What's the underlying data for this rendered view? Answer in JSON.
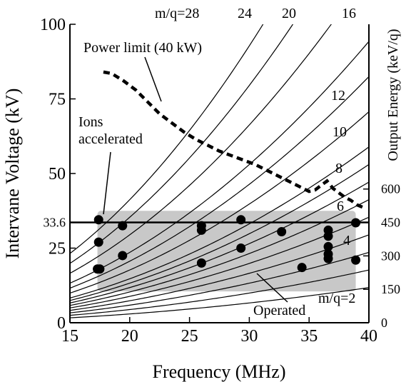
{
  "chart_data": {
    "type": "scatter",
    "xlabel": "Frequency (MHz)",
    "ylabel": "Intervane Voltage (kV)",
    "y2label": "Output Energy (keV/q)",
    "xlim": [
      15,
      40
    ],
    "ylim": [
      0,
      100
    ],
    "x_ticks": [
      "15",
      "20",
      "25",
      "30",
      "35",
      "40"
    ],
    "y_ticks": [
      "0",
      "25",
      "33.6",
      "50",
      "75",
      "100"
    ],
    "y2_ticks": [
      "0",
      "150",
      "300",
      "450",
      "600"
    ],
    "y2_tick_positions_kV": [
      0,
      11.2,
      22.4,
      33.6,
      44.8
    ],
    "grid": false,
    "reference_line": {
      "y": 33.6
    },
    "operated_region": {
      "x": [
        17.3,
        38.9
      ],
      "y": [
        10.5,
        37.5
      ],
      "label": "Operated"
    },
    "mq_curves": [
      {
        "label": "m/q=28",
        "m_over_q": 28
      },
      {
        "label": "24",
        "m_over_q": 24
      },
      {
        "label": "20",
        "m_over_q": 20
      },
      {
        "label": "16",
        "m_over_q": 16
      },
      {
        "label": "",
        "m_over_q": 14
      },
      {
        "label": "12",
        "m_over_q": 12
      },
      {
        "label": "10",
        "m_over_q": 10
      },
      {
        "label": "",
        "m_over_q": 9
      },
      {
        "label": "8",
        "m_over_q": 8
      },
      {
        "label": "",
        "m_over_q": 7
      },
      {
        "label": "6",
        "m_over_q": 6
      },
      {
        "label": "",
        "m_over_q": 5
      },
      {
        "label": "4",
        "m_over_q": 4
      },
      {
        "label": "",
        "m_over_q": 3
      },
      {
        "label": "m/q=2",
        "m_over_q": 2
      }
    ],
    "power_limit": {
      "label": "Power limit (40 kW)",
      "x": [
        17.8,
        18.5,
        19.5,
        20.5,
        21.5,
        22.5,
        23.5,
        24.5,
        25.5,
        26.5,
        27.5,
        28.5,
        29.5,
        30.5,
        31.5,
        32.5,
        33.5,
        34.5,
        35.0,
        35.5,
        36.0,
        36.5,
        37.0,
        37.5,
        38.0,
        38.5,
        39.0,
        39.6
      ],
      "y": [
        84,
        83.5,
        81,
        78,
        74,
        70,
        67,
        64,
        61.5,
        59.5,
        57.5,
        56,
        54.5,
        53,
        51,
        49,
        47,
        45,
        44,
        44.5,
        46,
        47.5,
        45,
        43.5,
        42,
        41,
        39.5,
        38.5
      ]
    },
    "ions_accelerated": {
      "label": "Ions accelerated",
      "points": [
        [
          17.4,
          34.5
        ],
        [
          17.4,
          27
        ],
        [
          17.3,
          18
        ],
        [
          17.5,
          18
        ],
        [
          19.4,
          32.5
        ],
        [
          19.4,
          22.5
        ],
        [
          26.0,
          32.5
        ],
        [
          26.0,
          31
        ],
        [
          26.0,
          20
        ],
        [
          29.3,
          34.5
        ],
        [
          29.3,
          25
        ],
        [
          32.7,
          30.5
        ],
        [
          34.4,
          18.5
        ],
        [
          36.6,
          31
        ],
        [
          36.6,
          29
        ],
        [
          36.6,
          25.5
        ],
        [
          36.6,
          23
        ],
        [
          36.6,
          21.5
        ],
        [
          38.9,
          33.5
        ],
        [
          38.9,
          21
        ]
      ]
    }
  }
}
